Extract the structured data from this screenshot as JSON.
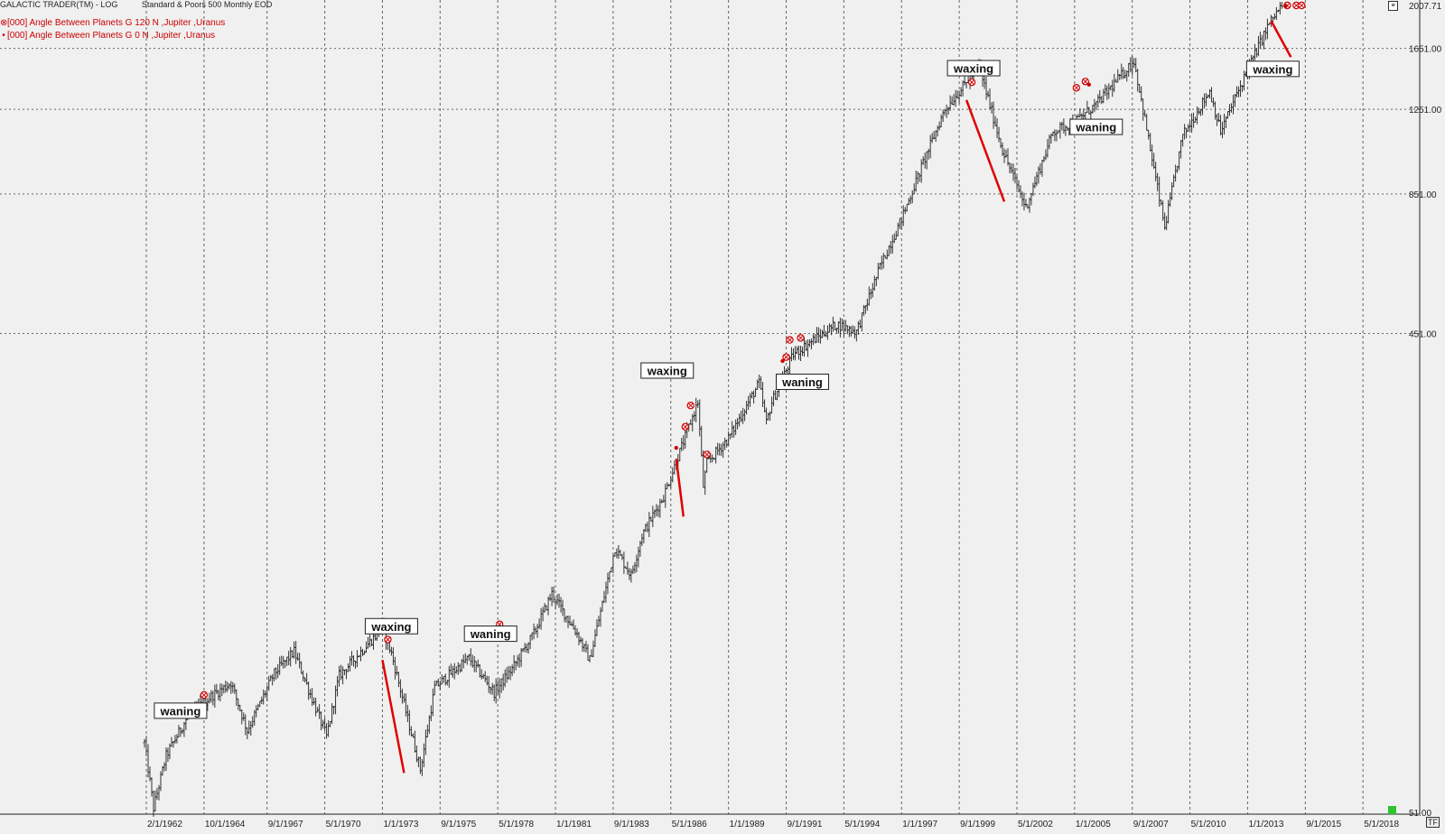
{
  "header": {
    "app_title": "GALACTIC TRADER(TM) - LOG",
    "instrument": "Standard & Poors 500 Monthly EOD"
  },
  "legend": [
    {
      "symbol": "⊗",
      "label": "[000] Angle Between Planets G 120 N ,Jupiter ,Uranus",
      "color": "#cc0000"
    },
    {
      "symbol": "•",
      "label": "[000] Angle Between Planets G 0 N ,Jupiter ,Uranus",
      "color": "#cc0000"
    }
  ],
  "corner": {
    "tf_label": "TF"
  },
  "chart_data": {
    "type": "bar",
    "scale": "log",
    "grid": true,
    "x_range": [
      "1/1/1961",
      "11/1/2018"
    ],
    "ylim": [
      51,
      2007.71
    ],
    "x_tick_labels": [
      "2/1/1962",
      "10/1/1964",
      "9/1/1967",
      "5/1/1970",
      "1/1/1973",
      "9/1/1975",
      "5/1/1978",
      "1/1/1981",
      "9/1/1983",
      "5/1/1986",
      "1/1/1989",
      "9/1/1991",
      "5/1/1994",
      "1/1/1997",
      "9/1/1999",
      "5/1/2002",
      "1/1/2005",
      "9/1/2007",
      "5/1/2010",
      "1/1/2013",
      "9/1/2015",
      "5/1/2018"
    ],
    "y_tick_labels": [
      "2007.71",
      "1651.00",
      "1251.00",
      "851.00",
      "451.00",
      "51.00"
    ],
    "y_tick_values": [
      2007.71,
      1651,
      1251,
      851,
      451,
      51
    ],
    "price_series_anchors": [
      [
        "1/1/1962",
        70
      ],
      [
        "6/1/1962",
        52
      ],
      [
        "1/1/1963",
        66
      ],
      [
        "1/1/1964",
        79
      ],
      [
        "1/1/1965",
        86
      ],
      [
        "1/1/1966",
        92
      ],
      [
        "10/1/1966",
        74
      ],
      [
        "1/1/1968",
        96
      ],
      [
        "12/1/1968",
        106
      ],
      [
        "6/1/1970",
        72
      ],
      [
        "1/1/1971",
        95
      ],
      [
        "1/1/1973",
        118
      ],
      [
        "6/1/1973",
        105
      ],
      [
        "10/1/1974",
        62
      ],
      [
        "6/1/1975",
        90
      ],
      [
        "1/1/1977",
        103
      ],
      [
        "3/1/1978",
        88
      ],
      [
        "1/1/1979",
        98
      ],
      [
        "1/1/1980",
        115
      ],
      [
        "11/1/1980",
        138
      ],
      [
        "1/1/1982",
        115
      ],
      [
        "8/1/1982",
        102
      ],
      [
        "10/1/1983",
        170
      ],
      [
        "7/1/1984",
        150
      ],
      [
        "1/1/1985",
        180
      ],
      [
        "1/1/1986",
        215
      ],
      [
        "8/1/1987",
        330
      ],
      [
        "11/1/1987",
        225
      ],
      [
        "1/1/1988",
        250
      ],
      [
        "1/1/1989",
        280
      ],
      [
        "6/1/1990",
        360
      ],
      [
        "10/1/1990",
        300
      ],
      [
        "1/1/1991",
        330
      ],
      [
        "1/1/1992",
        410
      ],
      [
        "1/1/1993",
        440
      ],
      [
        "1/1/1994",
        470
      ],
      [
        "12/1/1994",
        455
      ],
      [
        "1/1/1996",
        610
      ],
      [
        "1/1/1997",
        760
      ],
      [
        "1/1/1998",
        980
      ],
      [
        "1/1/1999",
        1250
      ],
      [
        "8/1/2000",
        1520
      ],
      [
        "9/1/2001",
        1040
      ],
      [
        "10/1/2002",
        800
      ],
      [
        "1/1/2004",
        1130
      ],
      [
        "1/1/2005",
        1180
      ],
      [
        "1/1/2006",
        1280
      ],
      [
        "10/1/2007",
        1560
      ],
      [
        "3/1/2009",
        730
      ],
      [
        "1/1/2010",
        1110
      ],
      [
        "4/1/2011",
        1360
      ],
      [
        "10/1/2011",
        1130
      ],
      [
        "1/1/2013",
        1500
      ],
      [
        "1/1/2014",
        1850
      ],
      [
        "8/1/2014",
        2007.71
      ]
    ],
    "annotations": [
      {
        "text": "waning",
        "x": "9/1/1963",
        "y": 81
      },
      {
        "text": "waxing",
        "x": "6/1/1973",
        "y": 119
      },
      {
        "text": "waning",
        "x": "1/1/1978",
        "y": 115
      },
      {
        "text": "waxing",
        "x": "3/1/1986",
        "y": 381
      },
      {
        "text": "waning",
        "x": "6/1/1992",
        "y": 362
      },
      {
        "text": "waxing",
        "x": "5/1/2000",
        "y": 1509
      },
      {
        "text": "waning",
        "x": "1/1/2006",
        "y": 1155
      },
      {
        "text": "waxing",
        "x": "3/1/2014",
        "y": 1504
      }
    ],
    "trend_lines": [
      {
        "start": [
          "1/1/1973",
          102
        ],
        "end": [
          "1/1/1974",
          61
        ]
      },
      {
        "start": [
          "8/1/1986",
          255
        ],
        "end": [
          "12/1/1986",
          196
        ]
      },
      {
        "start": [
          "1/1/2000",
          1305
        ],
        "end": [
          "10/1/2001",
          822
        ]
      },
      {
        "start": [
          "2/1/2014",
          1872
        ],
        "end": [
          "1/1/2015",
          1587
        ]
      }
    ],
    "markers_120": [
      [
        "10/1/1964",
        87
      ],
      [
        "4/1/1973",
        112
      ],
      [
        "6/1/1978",
        120
      ],
      [
        "1/1/1987",
        295
      ],
      [
        "4/1/1987",
        325
      ],
      [
        "1/1/1988",
        260
      ],
      [
        "9/1/1991",
        405
      ],
      [
        "11/1/1991",
        438
      ],
      [
        "5/1/1992",
        442
      ],
      [
        "4/1/2000",
        1415
      ],
      [
        "2/1/2005",
        1380
      ],
      [
        "7/1/2005",
        1420
      ],
      [
        "11/1/2014",
        2007.71
      ],
      [
        "4/1/2015",
        2007.71
      ],
      [
        "7/1/2015",
        2007.71
      ]
    ],
    "markers_0": [
      [
        "8/1/1986",
        268
      ],
      [
        "7/1/1991",
        398
      ],
      [
        "9/1/2005",
        1400
      ],
      [
        "10/1/2014",
        2000
      ]
    ]
  }
}
